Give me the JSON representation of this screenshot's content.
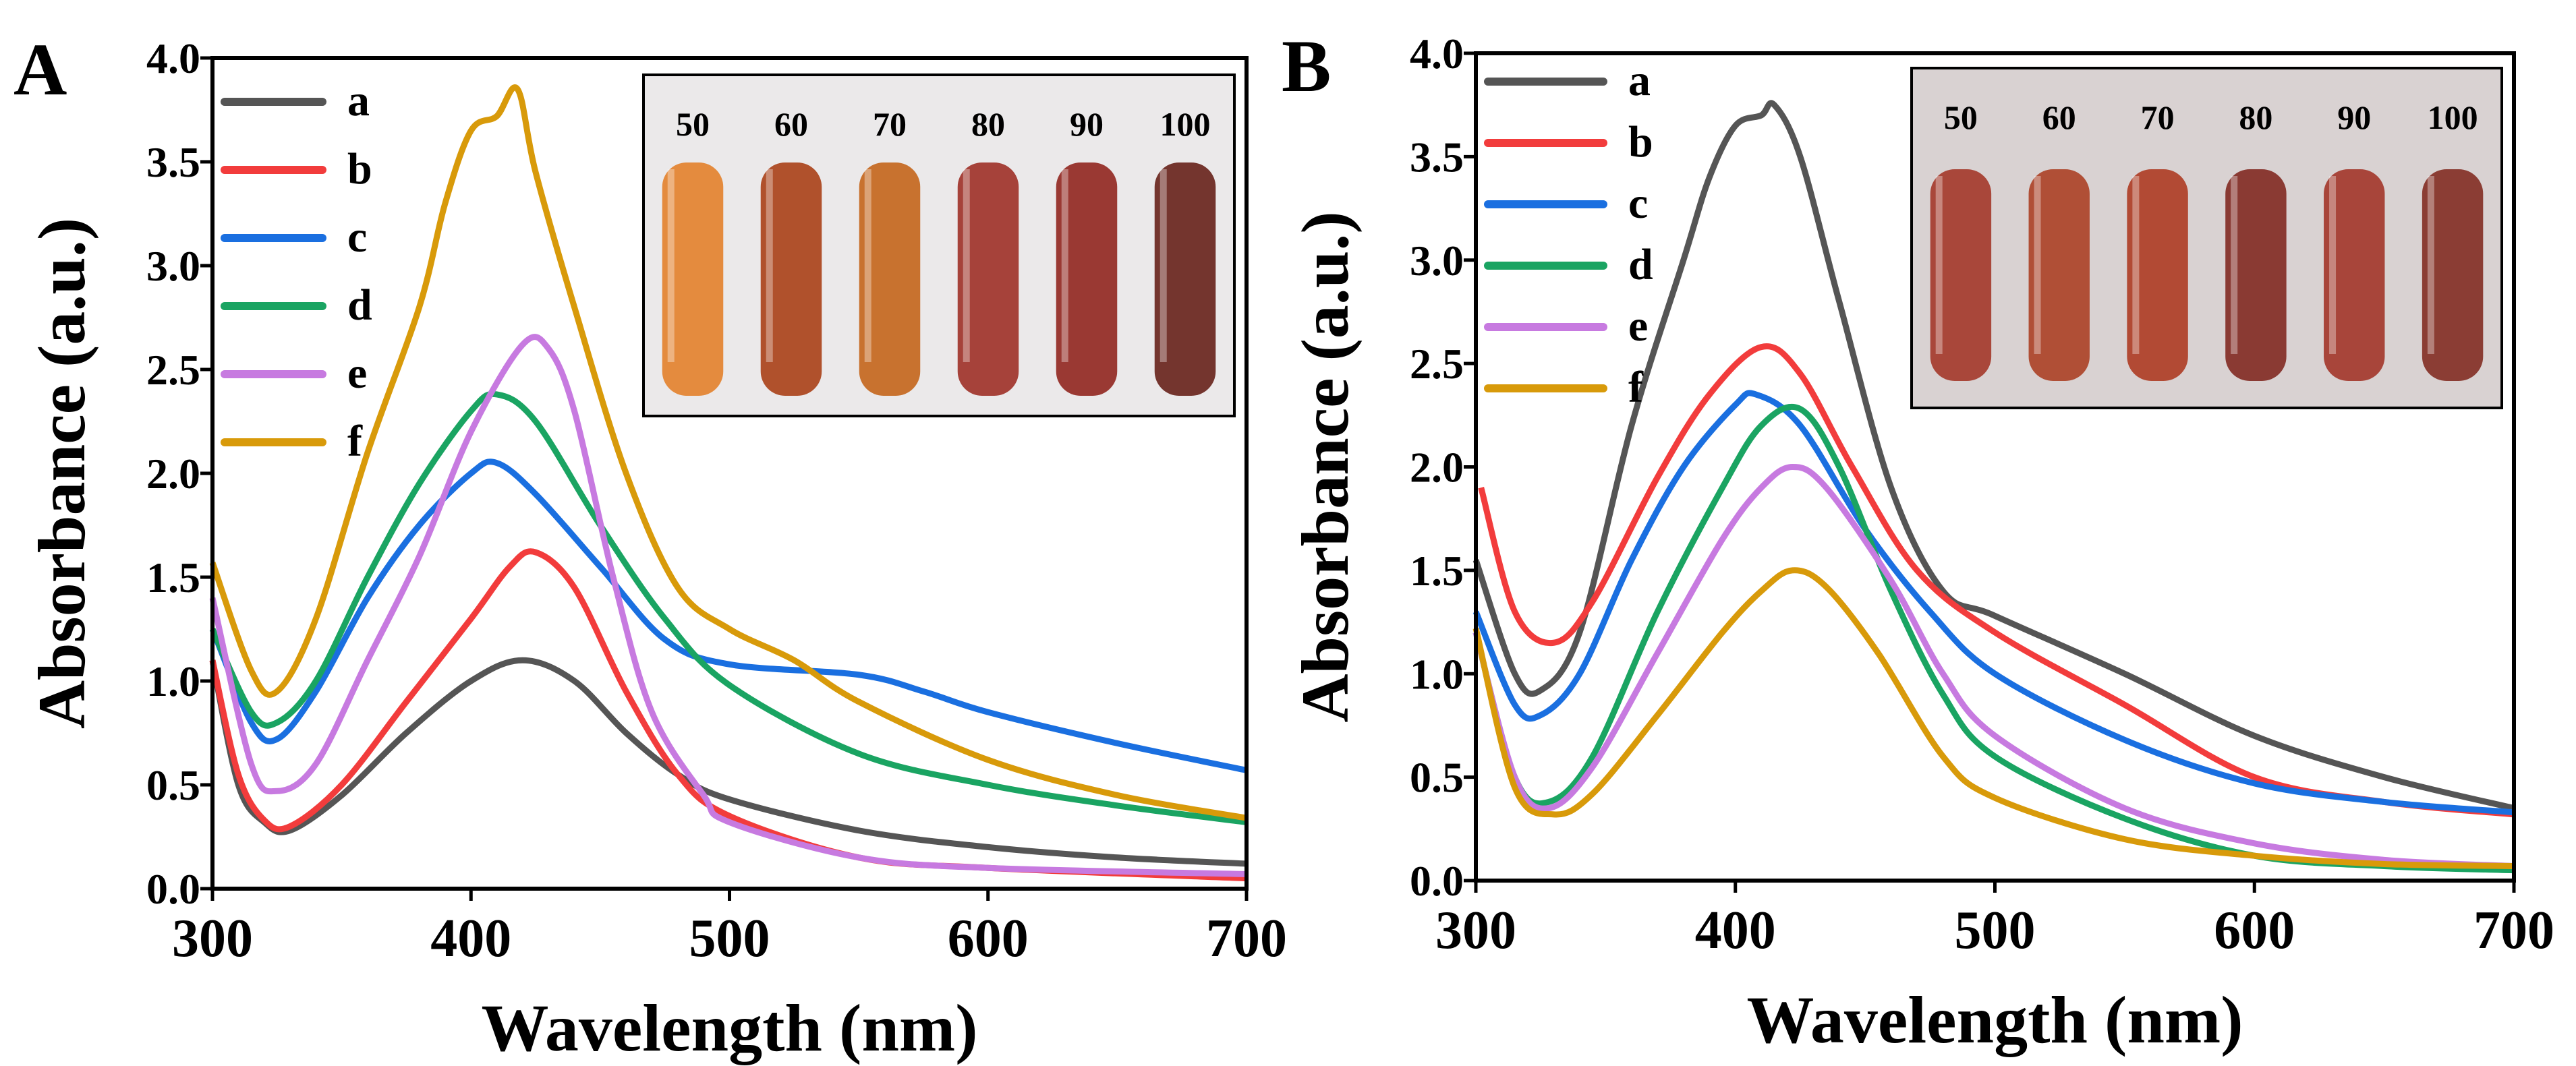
{
  "chart_data": [
    {
      "panel_label": "A",
      "type": "line",
      "xlabel": "Wavelength (nm)",
      "ylabel": "Absorbance (a.u.)",
      "xlim": [
        300,
        700
      ],
      "ylim": [
        0,
        4.0
      ],
      "xticks": [
        "300",
        "400",
        "500",
        "600",
        "700"
      ],
      "yticks": [
        "0.0",
        "0.5",
        "1.0",
        "1.5",
        "2.0",
        "2.5",
        "3.0",
        "3.5",
        "4.0"
      ],
      "legend": "top-left",
      "grid": false,
      "inset": {
        "labels": [
          "50",
          "60",
          "70",
          "80",
          "90",
          "100"
        ],
        "tube_colors": [
          "#e48b3e",
          "#b0512c",
          "#c8722f",
          "#a6423a",
          "#9a3933",
          "#74352e"
        ]
      },
      "series": [
        {
          "name": "a",
          "color": "#555555",
          "x": [
            300,
            310,
            320,
            330,
            350,
            375,
            400,
            420,
            440,
            460,
            480,
            500,
            550,
            600,
            650,
            700
          ],
          "y": [
            1.1,
            0.5,
            0.32,
            0.28,
            0.45,
            0.75,
            1.0,
            1.1,
            1.0,
            0.75,
            0.55,
            0.43,
            0.28,
            0.2,
            0.15,
            0.12
          ]
        },
        {
          "name": "b",
          "color": "#f23c3c",
          "x": [
            300,
            310,
            320,
            330,
            350,
            375,
            400,
            415,
            425,
            440,
            460,
            480,
            500,
            550,
            600,
            700
          ],
          "y": [
            1.1,
            0.55,
            0.33,
            0.3,
            0.5,
            0.9,
            1.3,
            1.55,
            1.62,
            1.45,
            0.95,
            0.55,
            0.35,
            0.15,
            0.1,
            0.05
          ]
        },
        {
          "name": "c",
          "color": "#1a6fe0",
          "x": [
            300,
            315,
            325,
            340,
            360,
            380,
            400,
            410,
            425,
            450,
            475,
            500,
            550,
            575,
            600,
            650,
            700
          ],
          "y": [
            1.25,
            0.8,
            0.72,
            0.95,
            1.4,
            1.75,
            2.0,
            2.05,
            1.9,
            1.55,
            1.2,
            1.08,
            1.03,
            0.95,
            0.85,
            0.7,
            0.57
          ]
        },
        {
          "name": "d",
          "color": "#1aa462",
          "x": [
            300,
            315,
            325,
            340,
            360,
            380,
            400,
            410,
            425,
            450,
            475,
            500,
            550,
            600,
            650,
            700
          ],
          "y": [
            1.25,
            0.85,
            0.8,
            1.0,
            1.5,
            1.95,
            2.3,
            2.38,
            2.25,
            1.75,
            1.3,
            0.98,
            0.65,
            0.5,
            0.4,
            0.32
          ]
        },
        {
          "name": "e",
          "color": "#c77ae0",
          "x": [
            300,
            315,
            325,
            340,
            360,
            380,
            400,
            420,
            430,
            440,
            455,
            470,
            490,
            500,
            550,
            600,
            700
          ],
          "y": [
            1.4,
            0.6,
            0.47,
            0.6,
            1.1,
            1.6,
            2.2,
            2.62,
            2.6,
            2.3,
            1.5,
            0.85,
            0.45,
            0.32,
            0.15,
            0.1,
            0.07
          ]
        },
        {
          "name": "f",
          "color": "#d89a0a",
          "x": [
            300,
            315,
            325,
            340,
            360,
            380,
            390,
            400,
            410,
            418,
            425,
            440,
            460,
            480,
            500,
            525,
            550,
            600,
            650,
            700
          ],
          "y": [
            1.57,
            1.05,
            0.95,
            1.3,
            2.1,
            2.8,
            3.3,
            3.65,
            3.72,
            3.85,
            3.45,
            2.8,
            2.0,
            1.45,
            1.25,
            1.1,
            0.9,
            0.62,
            0.45,
            0.34
          ]
        }
      ]
    },
    {
      "panel_label": "B",
      "type": "line",
      "xlabel": "Wavelength (nm)",
      "ylabel": "Absorbance (a.u.)",
      "xlim": [
        300,
        700
      ],
      "ylim": [
        0,
        4.0
      ],
      "xticks": [
        "300",
        "400",
        "500",
        "600",
        "700"
      ],
      "yticks": [
        "0.0",
        "0.5",
        "1.0",
        "1.5",
        "2.0",
        "2.5",
        "3.0",
        "3.5",
        "4.0"
      ],
      "legend": "top-left",
      "grid": false,
      "inset": {
        "labels": [
          "50",
          "60",
          "70",
          "80",
          "90",
          "100"
        ],
        "tube_colors": [
          "#a9473a",
          "#b04f36",
          "#b24a34",
          "#8a3a33",
          "#a8453a",
          "#8b3d34"
        ]
      },
      "series": [
        {
          "name": "a",
          "color": "#555555",
          "x": [
            300,
            315,
            325,
            340,
            360,
            380,
            390,
            400,
            410,
            415,
            425,
            440,
            460,
            480,
            500,
            550,
            600,
            650,
            700
          ],
          "y": [
            1.55,
            1.0,
            0.92,
            1.2,
            2.2,
            3.0,
            3.4,
            3.65,
            3.7,
            3.75,
            3.5,
            2.8,
            1.9,
            1.4,
            1.28,
            1.0,
            0.7,
            0.5,
            0.35
          ]
        },
        {
          "name": "b",
          "color": "#f23c3c",
          "x": [
            302,
            315,
            330,
            345,
            370,
            390,
            410,
            425,
            445,
            470,
            500,
            550,
            600,
            650,
            700
          ],
          "y": [
            1.9,
            1.3,
            1.15,
            1.35,
            1.95,
            2.35,
            2.58,
            2.45,
            2.0,
            1.5,
            1.2,
            0.85,
            0.5,
            0.38,
            0.32
          ]
        },
        {
          "name": "c",
          "color": "#1a6fe0",
          "x": [
            300,
            315,
            325,
            340,
            360,
            380,
            400,
            408,
            425,
            450,
            475,
            500,
            550,
            600,
            650,
            700
          ],
          "y": [
            1.3,
            0.85,
            0.8,
            1.0,
            1.55,
            2.0,
            2.3,
            2.35,
            2.2,
            1.7,
            1.3,
            1.0,
            0.68,
            0.47,
            0.38,
            0.33
          ]
        },
        {
          "name": "d",
          "color": "#1aa462",
          "x": [
            300,
            315,
            328,
            345,
            370,
            395,
            410,
            425,
            440,
            460,
            480,
            500,
            550,
            600,
            650,
            700
          ],
          "y": [
            1.2,
            0.5,
            0.38,
            0.6,
            1.3,
            1.9,
            2.2,
            2.28,
            2.0,
            1.4,
            0.9,
            0.6,
            0.3,
            0.12,
            0.07,
            0.05
          ]
        },
        {
          "name": "e",
          "color": "#c77ae0",
          "x": [
            300,
            315,
            328,
            345,
            370,
            395,
            410,
            422,
            435,
            460,
            480,
            500,
            550,
            600,
            650,
            700
          ],
          "y": [
            1.2,
            0.5,
            0.35,
            0.55,
            1.1,
            1.65,
            1.9,
            2.0,
            1.9,
            1.45,
            1.0,
            0.7,
            0.35,
            0.18,
            0.1,
            0.07
          ]
        },
        {
          "name": "f",
          "color": "#d89a0a",
          "x": [
            300,
            315,
            330,
            345,
            370,
            395,
            410,
            422,
            435,
            455,
            480,
            500,
            550,
            600,
            650,
            700
          ],
          "y": [
            1.22,
            0.45,
            0.32,
            0.42,
            0.8,
            1.2,
            1.4,
            1.5,
            1.42,
            1.1,
            0.6,
            0.4,
            0.2,
            0.12,
            0.08,
            0.07
          ]
        }
      ]
    }
  ]
}
